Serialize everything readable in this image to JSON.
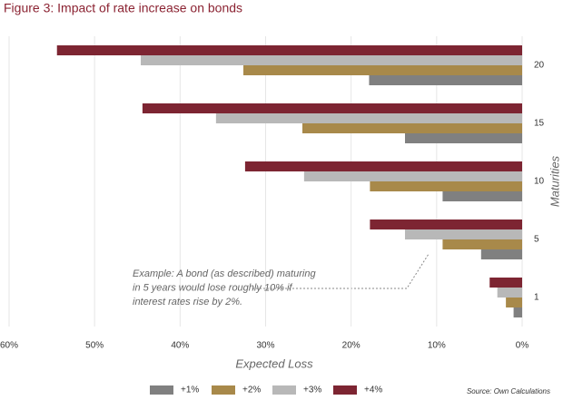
{
  "chart_data": {
    "type": "bar",
    "orientation": "horizontal",
    "title": "Figure 3: Impact of rate increase on bonds",
    "x_label": "Expected Loss",
    "y_label": "Maturities",
    "source": "Source: Own Calculations",
    "annotation": [
      "Example: A bond (as described) maturing",
      "in 5 years would lose roughly 10% if",
      "interest rates rise by 2%."
    ],
    "categories": [
      "20",
      "15",
      "10",
      "5",
      "1"
    ],
    "series": [
      {
        "name": "+1%",
        "color": "#808080",
        "values": [
          17.9,
          13.7,
          9.3,
          4.8,
          1.0
        ]
      },
      {
        "name": "+2%",
        "color": "#a8894a",
        "values": [
          32.6,
          25.7,
          17.8,
          9.3,
          1.9
        ]
      },
      {
        "name": "+3%",
        "color": "#b8b8b8",
        "values": [
          44.6,
          35.8,
          25.5,
          13.7,
          2.9
        ]
      },
      {
        "name": "+4%",
        "color": "#7d2532",
        "values": [
          54.4,
          44.4,
          32.4,
          17.8,
          3.8
        ]
      }
    ],
    "xlim": [
      0,
      60
    ],
    "x_reversed": true,
    "xticks": [
      {
        "value": 60,
        "label": "60%"
      },
      {
        "value": 50,
        "label": "50%"
      },
      {
        "value": 40,
        "label": "40%"
      },
      {
        "value": 30,
        "label": "30%"
      },
      {
        "value": 20,
        "label": "20%"
      },
      {
        "value": 10,
        "label": "10%"
      },
      {
        "value": 0,
        "label": "0%"
      }
    ],
    "grid": true
  }
}
